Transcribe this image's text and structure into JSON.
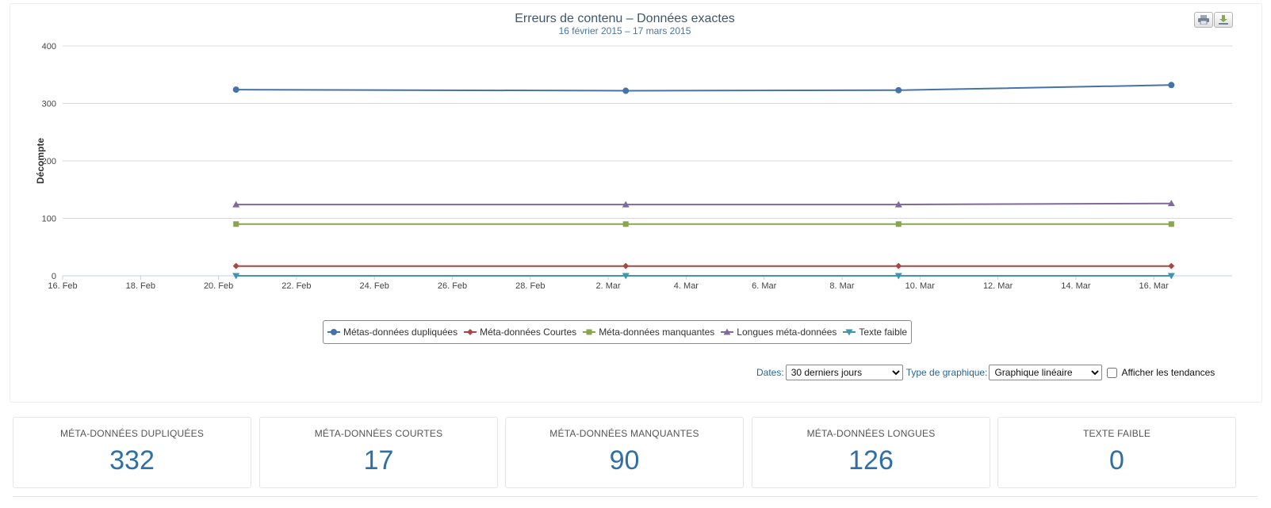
{
  "chart_data": {
    "type": "line",
    "title": "Erreurs de contenu – Données exactes",
    "subtitle": "16 février 2015 – 17 mars 2015",
    "ylabel": "Décompte",
    "xlabel": "",
    "ylim": [
      0,
      400
    ],
    "y_ticks": [
      "0",
      "100",
      "200",
      "300",
      "400"
    ],
    "x_range": [
      "2015-02-16",
      "2015-03-17"
    ],
    "x_tick_labels": [
      "16. Feb",
      "18. Feb",
      "20. Feb",
      "22. Feb",
      "24. Feb",
      "26. Feb",
      "28. Feb",
      "2. Mar",
      "4. Mar",
      "6. Mar",
      "8. Mar",
      "10. Mar",
      "12. Mar",
      "14. Mar",
      "16. Mar"
    ],
    "x": [
      "2015-02-20",
      "2015-03-02",
      "2015-03-09",
      "2015-03-16"
    ],
    "series": [
      {
        "name": "Métas-données dupliquées",
        "color": "#4572a7",
        "marker": "circle",
        "values": [
          324,
          322,
          323,
          332
        ]
      },
      {
        "name": "Méta-données Courtes",
        "color": "#aa4643",
        "marker": "diamond",
        "values": [
          17,
          17,
          17,
          17
        ]
      },
      {
        "name": "Méta-données manquantes",
        "color": "#89a54e",
        "marker": "square",
        "values": [
          90,
          90,
          90,
          90
        ]
      },
      {
        "name": "Longues méta-données",
        "color": "#80699b",
        "marker": "triangle",
        "values": [
          124,
          124,
          124,
          126
        ]
      },
      {
        "name": "Texte faible",
        "color": "#3d96ae",
        "marker": "triangle-down",
        "values": [
          0,
          0,
          0,
          0
        ]
      }
    ],
    "grid": true,
    "legend_position": "bottom-center"
  },
  "toolbar": {
    "print_icon": "printer-icon",
    "download_icon": "download-icon"
  },
  "controls": {
    "dates_label": "Dates:",
    "dates_value": "30 derniers jours",
    "chart_type_label": "Type de graphique:",
    "chart_type_value": "Graphique linéaire",
    "trends_label": "Afficher les tendances",
    "trends_checked": false
  },
  "stats": [
    {
      "title": "MÉTA-DONNÉES DUPLIQUÉES",
      "value": "332"
    },
    {
      "title": "MÉTA-DONNÉES COURTES",
      "value": "17"
    },
    {
      "title": "MÉTA-DONNÉES MANQUANTES",
      "value": "90"
    },
    {
      "title": "MÉTA-DONNÉES LONGUES",
      "value": "126"
    },
    {
      "title": "TEXTE FAIBLE",
      "value": "0"
    }
  ]
}
